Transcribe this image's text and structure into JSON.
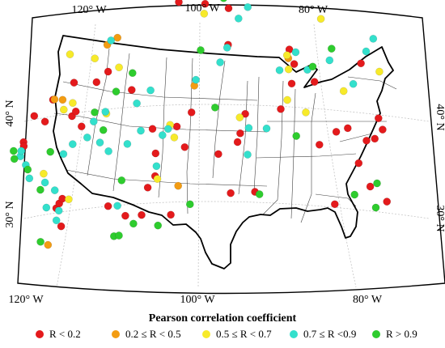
{
  "map": {
    "lon_labels_top": [
      "120° W",
      "100° W",
      "80° W"
    ],
    "lon_labels_bottom": [
      "120° W",
      "100° W",
      "80° W"
    ],
    "lat_labels_left": [
      "40° N",
      "30° N"
    ],
    "lat_labels_right": [
      "40° N",
      "30° N"
    ],
    "frame_color": "#000000",
    "graticule_color": "#bdbdbd",
    "border_color": "#000000"
  },
  "legend": {
    "title": "Pearson correlation coefficient",
    "items": [
      {
        "label": "R < 0.2",
        "color": "#e41a1c"
      },
      {
        "label": "0.2 ≤ R < 0.5",
        "color": "#f39c12"
      },
      {
        "label": "0.5 ≤ R < 0.7",
        "color": "#f7ea2a"
      },
      {
        "label": "0.7 ≤ R <0.9",
        "color": "#33e0cc"
      },
      {
        "label": "R > 0.9",
        "color": "#2ecc2e"
      }
    ]
  },
  "chart_data": {
    "type": "scatter",
    "title": "",
    "legend_title": "Pearson correlation coefficient",
    "categories": [
      "R < 0.2",
      "0.2 ≤ R < 0.5",
      "0.5 ≤ R < 0.7",
      "0.7 ≤ R <0.9",
      "R > 0.9"
    ],
    "series": [
      {
        "name": "R < 0.2",
        "color": "#e41a1c",
        "points": [
          [
            -121.5,
            47.1
          ],
          [
            -121.6,
            45.2
          ],
          [
            -121.0,
            44.8
          ],
          [
            -120.4,
            44.4
          ],
          [
            -113.9,
            46.0
          ],
          [
            -111.5,
            47.2
          ],
          [
            -109.0,
            47.3
          ],
          [
            -104.5,
            47.5
          ],
          [
            -107.7,
            44.6
          ],
          [
            -106.5,
            43.5
          ],
          [
            -106.2,
            41.2
          ],
          [
            -106.4,
            38.7
          ],
          [
            -103.1,
            38.6
          ],
          [
            -102.1,
            40.7
          ],
          [
            -101.1,
            37.2
          ],
          [
            -95.4,
            45.3
          ],
          [
            -91.8,
            45.0
          ],
          [
            -97.4,
            41.4
          ],
          [
            -94.8,
            40.1
          ],
          [
            -94.5,
            39.2
          ],
          [
            -94.0,
            37.2
          ],
          [
            -89.4,
            36.4
          ],
          [
            -88.4,
            33.7
          ],
          [
            -88.4,
            31.7
          ],
          [
            -85.6,
            33.2
          ],
          [
            -89.2,
            30.3
          ],
          [
            -83.6,
            39.4
          ],
          [
            -81.7,
            37.8
          ],
          [
            -80.3,
            37.2
          ],
          [
            -77.5,
            38.0
          ],
          [
            -76.5,
            37.6
          ],
          [
            -75.8,
            36.5
          ],
          [
            -76.7,
            35.5
          ],
          [
            -80.4,
            30.5
          ],
          [
            -77.8,
            40.4
          ],
          [
            -75.4,
            42.4
          ],
          [
            -72.5,
            43.4
          ],
          [
            -79.8,
            45.0
          ],
          [
            -99.4,
            26.2
          ],
          [
            -96.7,
            26.6
          ],
          [
            -96.6,
            30.3
          ],
          [
            -102.4,
            26.0
          ],
          [
            -108.7,
            34.6
          ],
          [
            -111.4,
            32.5
          ],
          [
            -113.0,
            33.4
          ],
          [
            -115.8,
            33.1
          ],
          [
            -118.8,
            34.4
          ],
          [
            -120.4,
            36.4
          ],
          [
            -121.6,
            35.6
          ],
          [
            -123.8,
            37.9
          ],
          [
            -123.9,
            38.3
          ],
          [
            -116.8,
            36.4
          ],
          [
            -115.8,
            37.6
          ],
          [
            -116.2,
            36.0
          ]
        ]
      },
      {
        "name": "0.2 ≤ R < 0.5",
        "color": "#f39c12",
        "points": [
          [
            -124.2,
            48.6
          ],
          [
            -103.2,
            44.6
          ],
          [
            -100.7,
            34.5
          ],
          [
            -109.8,
            29.2
          ],
          [
            -111.1,
            29.8
          ],
          [
            -118.6,
            34.4
          ],
          [
            -117.6,
            34.6
          ],
          [
            -89.2,
            31.2
          ]
        ]
      },
      {
        "name": "0.5 ≤ R < 0.7",
        "color": "#f7ea2a",
        "points": [
          [
            -119.5,
            44.6
          ],
          [
            -106.2,
            43.8
          ],
          [
            -122.2,
            41.5
          ],
          [
            -116.4,
            35.1
          ],
          [
            -117.7,
            35.6
          ],
          [
            -110.0,
            32.2
          ],
          [
            -115.7,
            30.2
          ],
          [
            -112.8,
            31.0
          ],
          [
            -112.3,
            36.7
          ],
          [
            -104.0,
            38.4
          ],
          [
            -103.5,
            39.7
          ],
          [
            -94.7,
            37.6
          ],
          [
            -99.5,
            27.2
          ],
          [
            -97.4,
            24.3
          ],
          [
            -89.4,
            30.9
          ],
          [
            -89.0,
            32.3
          ],
          [
            -86.1,
            36.4
          ],
          [
            -81.8,
            33.6
          ],
          [
            -86.0,
            26.8
          ],
          [
            -78.0,
            30.9
          ],
          [
            -88.7,
            35.4
          ]
        ]
      },
      {
        "name": "0.7 ≤ R <0.9",
        "color": "#33e0cc",
        "points": [
          [
            -122.0,
            46.4
          ],
          [
            -121.3,
            45.5
          ],
          [
            -112.5,
            46.1
          ],
          [
            -123.0,
            44.9
          ],
          [
            -122.3,
            42.4
          ],
          [
            -124.3,
            41.6
          ],
          [
            -124.3,
            40.2
          ],
          [
            -118.9,
            40.0
          ],
          [
            -117.4,
            39.2
          ],
          [
            -115.3,
            38.8
          ],
          [
            -112.7,
            40.5
          ],
          [
            -110.0,
            40.0
          ],
          [
            -108.0,
            38.8
          ],
          [
            -106.2,
            42.5
          ],
          [
            -105.1,
            39.4
          ],
          [
            -113.7,
            39.5
          ],
          [
            -114.1,
            37.3
          ],
          [
            -112.4,
            36.5
          ],
          [
            -108.2,
            36.0
          ],
          [
            -106.3,
            34.8
          ],
          [
            -100.5,
            33.9
          ],
          [
            -97.5,
            32.1
          ],
          [
            -96.7,
            30.6
          ],
          [
            -95.5,
            27.6
          ],
          [
            -98.5,
            25.0
          ],
          [
            -94.5,
            26.4
          ],
          [
            -90.1,
            32.5
          ],
          [
            -88.4,
            30.5
          ],
          [
            -86.7,
            32.1
          ],
          [
            -84.2,
            30.8
          ],
          [
            -80.1,
            29.2
          ],
          [
            -79.6,
            27.8
          ],
          [
            -80.8,
            32.7
          ],
          [
            -93.4,
            38.6
          ],
          [
            -93.3,
            41.3
          ],
          [
            -91.0,
            38.5
          ],
          [
            -121.2,
            43.4
          ],
          [
            -110.6,
            29.4
          ],
          [
            -124.7,
            39.2
          ],
          [
            -124.4,
            38.7
          ],
          [
            -104.3,
            38.8
          ]
        ]
      },
      {
        "name": "R > 0.9",
        "color": "#2ecc2e",
        "points": [
          [
            -125.2,
            48.1
          ],
          [
            -113.7,
            49.1
          ],
          [
            -112.9,
            49.1
          ],
          [
            -110.4,
            48.1
          ],
          [
            -106.6,
            48.5
          ],
          [
            -101.5,
            46.5
          ],
          [
            -111.4,
            43.6
          ],
          [
            -123.2,
            43.0
          ],
          [
            -124.2,
            40.7
          ],
          [
            -125.6,
            39.3
          ],
          [
            -125.4,
            38.5
          ],
          [
            -120.6,
            39.5
          ],
          [
            -113.0,
            38.3
          ],
          [
            -113.8,
            36.4
          ],
          [
            -110.7,
            34.6
          ],
          [
            -108.4,
            32.9
          ],
          [
            -98.0,
            36.7
          ],
          [
            -99.9,
            30.9
          ],
          [
            -97.3,
            25.6
          ],
          [
            -98.9,
            24.4
          ],
          [
            -86.1,
            31.7
          ],
          [
            -86.9,
            38.9
          ],
          [
            -84.2,
            29.6
          ],
          [
            -77.3,
            43.6
          ],
          [
            -73.8,
            44.3
          ],
          [
            -74.6,
            41.9
          ],
          [
            -91.1,
            45.2
          ]
        ]
      }
    ]
  }
}
